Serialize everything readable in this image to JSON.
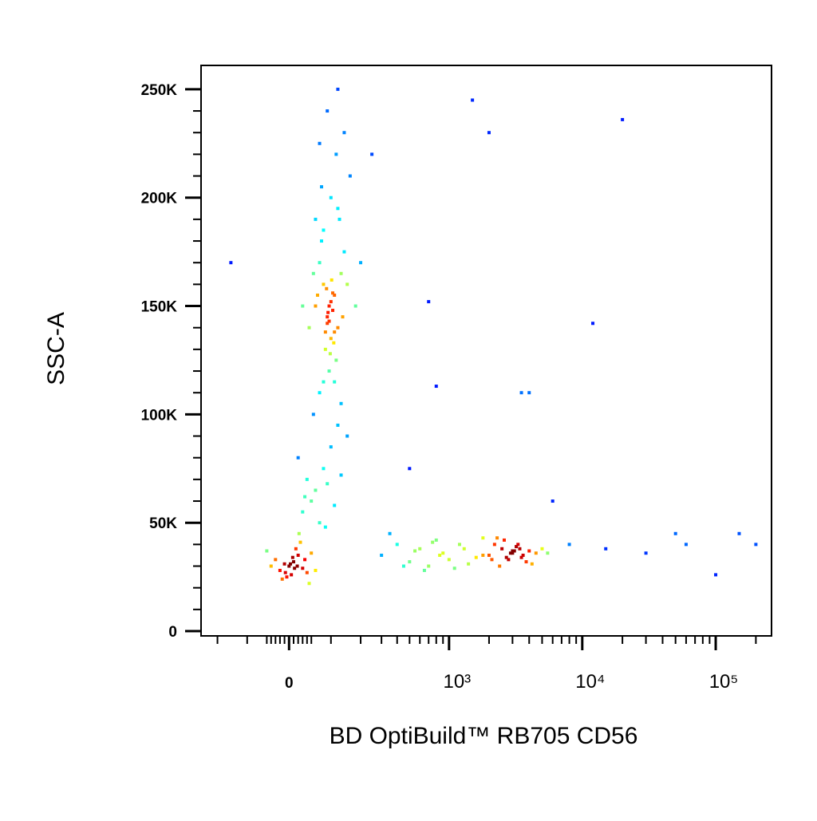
{
  "chart_data": {
    "type": "scatter",
    "x_label": "BD OptiBuild™ RB705 CD56",
    "y_label": "SSC-A",
    "xscale": "biexponential",
    "xlim": [
      -276,
      262000
    ],
    "ylim": [
      -2200,
      261000
    ],
    "xticks": [
      0,
      {
        "value": 1000,
        "label": "10³"
      },
      {
        "value": 10000,
        "label": "10⁴"
      },
      {
        "value": 100000,
        "label": "10⁵"
      }
    ],
    "xminor_ticks": [
      -200,
      -100,
      -50,
      -40,
      -30,
      -20,
      -10,
      10,
      20,
      30,
      40,
      50,
      100,
      200,
      300,
      400,
      500,
      600,
      700,
      800,
      900,
      2000,
      3000,
      4000,
      5000,
      6000,
      7000,
      8000,
      9000,
      20000,
      30000,
      40000,
      50000,
      60000,
      70000,
      80000,
      90000,
      200000
    ],
    "yticks": [
      0,
      {
        "value": 50000,
        "label": "50K"
      },
      {
        "value": 100000,
        "label": "100K"
      },
      {
        "value": 150000,
        "label": "150K"
      },
      {
        "value": 200000,
        "label": "200K"
      },
      {
        "value": 250000,
        "label": "250K"
      }
    ],
    "yminor_ticks": [
      10000,
      20000,
      30000,
      40000,
      60000,
      70000,
      80000,
      90000,
      110000,
      120000,
      130000,
      140000,
      160000,
      170000,
      180000,
      190000,
      210000,
      220000,
      230000,
      240000
    ],
    "x": [
      60,
      90,
      110,
      80,
      100,
      120,
      70,
      95,
      130,
      85,
      105,
      75,
      115,
      140,
      65,
      90,
      100,
      110,
      125,
      80,
      95,
      150,
      55,
      70,
      100,
      120,
      135,
      88,
      92,
      108,
      160,
      45,
      80,
      115,
      200,
      30,
      98,
      102,
      140,
      75,
      90,
      110,
      60,
      130,
      180,
      85,
      95,
      105,
      70,
      120,
      0,
      10,
      -20,
      20,
      5,
      -10,
      30,
      15,
      -30,
      40,
      8,
      -5,
      25,
      -40,
      50,
      12,
      3,
      -15,
      35,
      60,
      -50,
      18,
      22,
      -8,
      45,
      30,
      60,
      80,
      50,
      100,
      40,
      120,
      70,
      20,
      90,
      150,
      110,
      55,
      35,
      85,
      130,
      300,
      400,
      500,
      600,
      700,
      800,
      900,
      1000,
      1200,
      1400,
      350,
      450,
      550,
      650,
      750,
      850,
      1100,
      1300,
      1600,
      1800,
      2000,
      2500,
      3000,
      3500,
      4000,
      2200,
      2800,
      3200,
      3800,
      4500,
      2400,
      2600,
      3100,
      3600,
      5000,
      2100,
      2900,
      3300,
      1800,
      4200,
      2700,
      3000,
      3400,
      2300,
      5500,
      15000,
      30000,
      60000,
      150000,
      200000,
      100000,
      50000,
      8000,
      6000,
      20000,
      700,
      1500,
      2000,
      4000,
      12000,
      3500,
      800,
      500,
      250,
      -150
    ],
    "y": [
      150000,
      145000,
      155000,
      160000,
      135000,
      140000,
      170000,
      150000,
      165000,
      130000,
      148000,
      180000,
      125000,
      175000,
      155000,
      142000,
      152000,
      138000,
      190000,
      185000,
      120000,
      160000,
      165000,
      110000,
      200000,
      195000,
      145000,
      158000,
      147000,
      133000,
      210000,
      140000,
      115000,
      220000,
      170000,
      150000,
      128000,
      162000,
      230000,
      205000,
      240000,
      115000,
      190000,
      105000,
      150000,
      138000,
      143000,
      156000,
      225000,
      250000,
      30000,
      32000,
      28000,
      35000,
      26000,
      31000,
      29000,
      38000,
      33000,
      27000,
      34000,
      25000,
      41000,
      30000,
      36000,
      29000,
      31000,
      24000,
      33000,
      28000,
      37000,
      30000,
      45000,
      27000,
      22000,
      55000,
      65000,
      75000,
      60000,
      85000,
      70000,
      95000,
      50000,
      80000,
      68000,
      90000,
      58000,
      100000,
      62000,
      48000,
      72000,
      35000,
      40000,
      32000,
      38000,
      30000,
      42000,
      36000,
      33000,
      40000,
      31000,
      45000,
      30000,
      37000,
      28000,
      41000,
      35000,
      29000,
      38000,
      34000,
      43000,
      35000,
      38000,
      36000,
      34000,
      37000,
      40000,
      33000,
      39000,
      32000,
      36000,
      30000,
      42000,
      37000,
      35000,
      38000,
      33000,
      36000,
      40000,
      35000,
      31000,
      34000,
      37000,
      38000,
      43000,
      36000,
      38000,
      36000,
      40000,
      45000,
      40000,
      26000,
      45000,
      40000,
      60000,
      236000,
      152000,
      245000,
      230000,
      110000,
      142000,
      110000,
      113000,
      75000,
      220000,
      170000
    ]
  }
}
